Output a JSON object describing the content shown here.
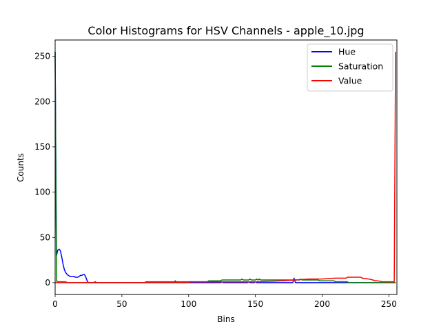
{
  "chart_data": {
    "type": "line",
    "title": "Color Histograms for HSV Channels - apple_10.jpg",
    "xlabel": "Bins",
    "ylabel": "Counts",
    "xlim": [
      0,
      256
    ],
    "ylim": [
      -13,
      268
    ],
    "xticks": [
      0,
      50,
      100,
      150,
      200,
      250
    ],
    "yticks": [
      0,
      50,
      100,
      150,
      200,
      250
    ],
    "grid": false,
    "legend_position": "top-right",
    "series": [
      {
        "name": "Hue",
        "color": "#0000ff",
        "points": [
          [
            0,
            255
          ],
          [
            1,
            30
          ],
          [
            2,
            36
          ],
          [
            3,
            37
          ],
          [
            4,
            35
          ],
          [
            5,
            28
          ],
          [
            6,
            20
          ],
          [
            7,
            14
          ],
          [
            8,
            11
          ],
          [
            9,
            9
          ],
          [
            10,
            8
          ],
          [
            11,
            7
          ],
          [
            12,
            7
          ],
          [
            13,
            7
          ],
          [
            14,
            7
          ],
          [
            15,
            6
          ],
          [
            16,
            6
          ],
          [
            17,
            6
          ],
          [
            18,
            7
          ],
          [
            19,
            8
          ],
          [
            20,
            8
          ],
          [
            21,
            9
          ],
          [
            22,
            9
          ],
          [
            23,
            6
          ],
          [
            24,
            2
          ],
          [
            25,
            0
          ],
          [
            29,
            0
          ],
          [
            30,
            1
          ],
          [
            31,
            0
          ],
          [
            89,
            0
          ],
          [
            90,
            2
          ],
          [
            91,
            0
          ],
          [
            124,
            0
          ],
          [
            125,
            1
          ],
          [
            126,
            0
          ],
          [
            144,
            0
          ],
          [
            145,
            1
          ],
          [
            146,
            0
          ],
          [
            149,
            0
          ],
          [
            150,
            1
          ],
          [
            151,
            0
          ],
          [
            178,
            0
          ],
          [
            179,
            5
          ],
          [
            180,
            0
          ],
          [
            255,
            0
          ]
        ]
      },
      {
        "name": "Saturation",
        "color": "#008000",
        "points": [
          [
            0,
            255
          ],
          [
            1,
            2
          ],
          [
            2,
            1
          ],
          [
            8,
            1
          ],
          [
            9,
            0
          ],
          [
            67,
            0
          ],
          [
            68,
            1
          ],
          [
            90,
            1
          ],
          [
            91,
            1
          ],
          [
            114,
            1
          ],
          [
            115,
            2
          ],
          [
            124,
            2
          ],
          [
            125,
            3
          ],
          [
            139,
            3
          ],
          [
            140,
            4
          ],
          [
            141,
            3
          ],
          [
            145,
            3
          ],
          [
            146,
            4
          ],
          [
            147,
            3
          ],
          [
            150,
            3
          ],
          [
            151,
            4
          ],
          [
            152,
            3
          ],
          [
            153,
            4
          ],
          [
            154,
            3
          ],
          [
            178,
            3
          ],
          [
            179,
            4
          ],
          [
            180,
            3
          ],
          [
            183,
            3
          ],
          [
            184,
            4
          ],
          [
            185,
            3
          ],
          [
            197,
            3
          ],
          [
            198,
            2
          ],
          [
            209,
            2
          ],
          [
            210,
            1
          ],
          [
            219,
            1
          ],
          [
            220,
            0
          ],
          [
            241,
            0
          ],
          [
            242,
            0
          ],
          [
            255,
            0
          ]
        ]
      },
      {
        "name": "Value",
        "color": "#ff0000",
        "points": [
          [
            0,
            0
          ],
          [
            100,
            0
          ],
          [
            101,
            1
          ],
          [
            150,
            1
          ],
          [
            170,
            2
          ],
          [
            180,
            3
          ],
          [
            190,
            4
          ],
          [
            200,
            4
          ],
          [
            210,
            5
          ],
          [
            218,
            5
          ],
          [
            219,
            6
          ],
          [
            229,
            6
          ],
          [
            230,
            5
          ],
          [
            235,
            4
          ],
          [
            238,
            3
          ],
          [
            240,
            2
          ],
          [
            242,
            2
          ],
          [
            245,
            1
          ],
          [
            250,
            1
          ],
          [
            253,
            1
          ],
          [
            254,
            1
          ],
          [
            255,
            255
          ]
        ]
      }
    ]
  }
}
